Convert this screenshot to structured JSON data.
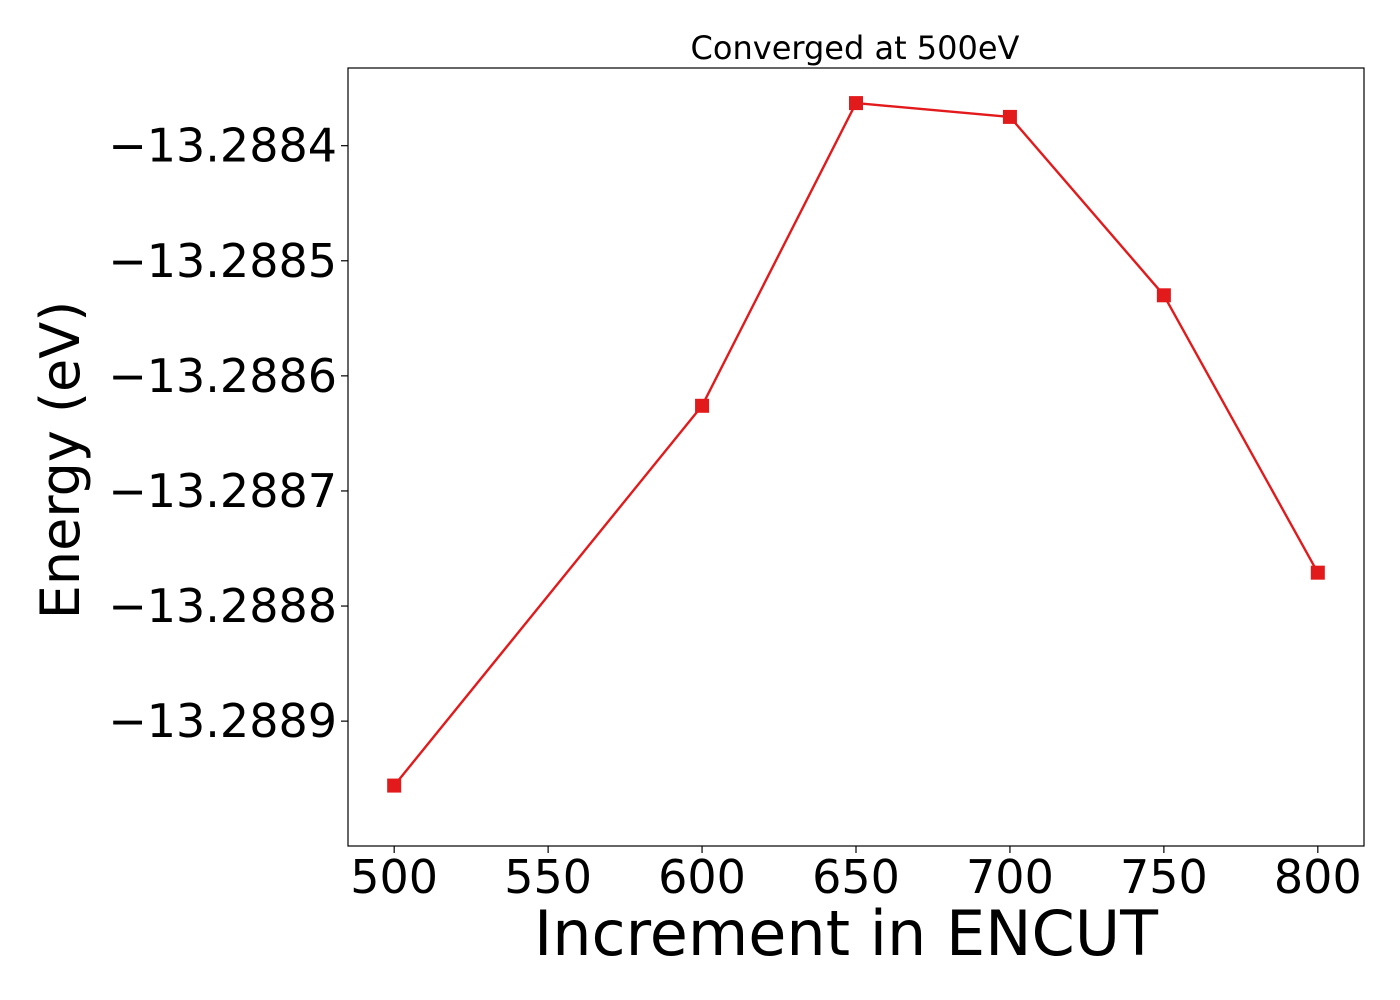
{
  "chart_data": {
    "type": "line",
    "title": "Converged at 500eV",
    "xlabel": "Increment in ENCUT",
    "ylabel": "Energy (eV)",
    "x": [
      500,
      600,
      650,
      700,
      750,
      800
    ],
    "series": [
      {
        "values": [
          -13.288956,
          -13.288626,
          -13.288363,
          -13.288375,
          -13.28853,
          -13.288771
        ],
        "color": "#e31a1c",
        "marker": "square"
      }
    ],
    "xticks": [
      500,
      550,
      600,
      650,
      700,
      750,
      800
    ],
    "xtick_labels": [
      "500",
      "550",
      "600",
      "650",
      "700",
      "750",
      "800"
    ],
    "yticks": [
      -13.2884,
      -13.2885,
      -13.2886,
      -13.2887,
      -13.2888,
      -13.2889
    ],
    "ytick_labels": [
      "−13.2884",
      "−13.2885",
      "−13.2886",
      "−13.2887",
      "−13.2888",
      "−13.2889"
    ],
    "xlim": [
      485,
      815
    ],
    "ylim": [
      -13.2890085,
      -13.2883325
    ],
    "grid": false,
    "legend": "none"
  }
}
